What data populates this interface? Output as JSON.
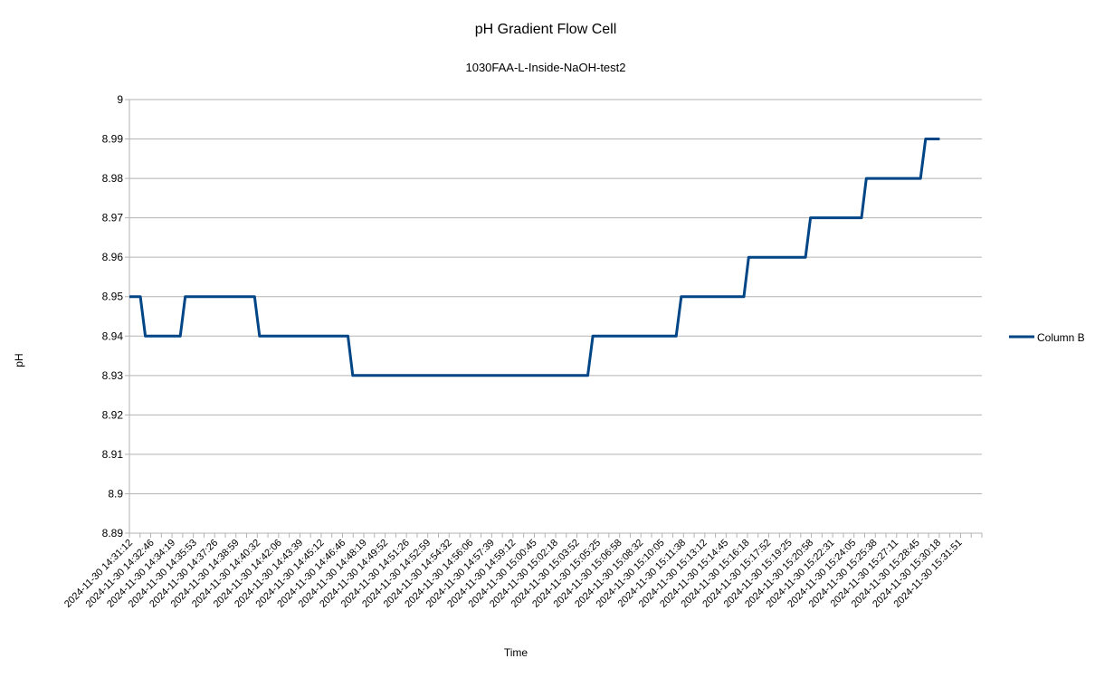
{
  "chart_data": {
    "type": "line",
    "title": "pH Gradient Flow Cell",
    "subtitle": "1030FAA-L-Inside-NaOH-test2",
    "xlabel": "Time",
    "ylabel": "pH",
    "ylim": [
      8.89,
      9
    ],
    "yticks": [
      "8.89",
      "8.9",
      "8.91",
      "8.92",
      "8.93",
      "8.94",
      "8.95",
      "8.96",
      "8.97",
      "8.98",
      "8.99",
      "9"
    ],
    "grid": true,
    "legend_position": "right",
    "series_color": "#004586",
    "xticks": [
      "2024-11-30 14:31:12",
      "2024-11-30 14:32:46",
      "2024-11-30 14:34:19",
      "2024-11-30 14:35:53",
      "2024-11-30 14:37:26",
      "2024-11-30 14:38:59",
      "2024-11-30 14:40:32",
      "2024-11-30 14:42:06",
      "2024-11-30 14:43:39",
      "2024-11-30 14:45:12",
      "2024-11-30 14:46:46",
      "2024-11-30 14:48:19",
      "2024-11-30 14:49:52",
      "2024-11-30 14:51:26",
      "2024-11-30 14:52:59",
      "2024-11-30 14:54:32",
      "2024-11-30 14:56:06",
      "2024-11-30 14:57:39",
      "2024-11-30 14:59:12",
      "2024-11-30 15:00:45",
      "2024-11-30 15:02:18",
      "2024-11-30 15:03:52",
      "2024-11-30 15:05:25",
      "2024-11-30 15:06:58",
      "2024-11-30 15:08:32",
      "2024-11-30 15:10:05",
      "2024-11-30 15:11:38",
      "2024-11-30 15:13:12",
      "2024-11-30 15:14:45",
      "2024-11-30 15:16:18",
      "2024-11-30 15:17:52",
      "2024-11-30 15:19:25",
      "2024-11-30 15:20:58",
      "2024-11-30 15:22:31",
      "2024-11-30 15:24:05",
      "2024-11-30 15:25:38",
      "2024-11-30 15:27:11",
      "2024-11-30 15:28:45",
      "2024-11-30 15:30:18",
      "2024-11-30 15:31:51"
    ],
    "series": [
      {
        "name": "Column B",
        "points": [
          [
            "2024-11-30 14:31:12",
            8.95
          ],
          [
            "2024-11-30 14:32:00",
            8.95
          ],
          [
            "2024-11-30 14:32:22",
            8.94
          ],
          [
            "2024-11-30 14:34:55",
            8.94
          ],
          [
            "2024-11-30 14:35:17",
            8.95
          ],
          [
            "2024-11-30 14:40:21",
            8.95
          ],
          [
            "2024-11-30 14:40:43",
            8.94
          ],
          [
            "2024-11-30 14:47:11",
            8.94
          ],
          [
            "2024-11-30 14:47:32",
            8.93
          ],
          [
            "2024-11-30 15:04:43",
            8.93
          ],
          [
            "2024-11-30 15:05:05",
            8.94
          ],
          [
            "2024-11-30 15:11:11",
            8.94
          ],
          [
            "2024-11-30 15:11:33",
            8.95
          ],
          [
            "2024-11-30 15:16:08",
            8.95
          ],
          [
            "2024-11-30 15:16:29",
            8.96
          ],
          [
            "2024-11-30 15:20:38",
            8.96
          ],
          [
            "2024-11-30 15:21:00",
            8.97
          ],
          [
            "2024-11-30 15:24:44",
            8.97
          ],
          [
            "2024-11-30 15:25:05",
            8.98
          ],
          [
            "2024-11-30 15:29:03",
            8.98
          ],
          [
            "2024-11-30 15:29:25",
            8.99
          ],
          [
            "2024-11-30 15:30:27",
            8.99
          ]
        ]
      }
    ]
  }
}
